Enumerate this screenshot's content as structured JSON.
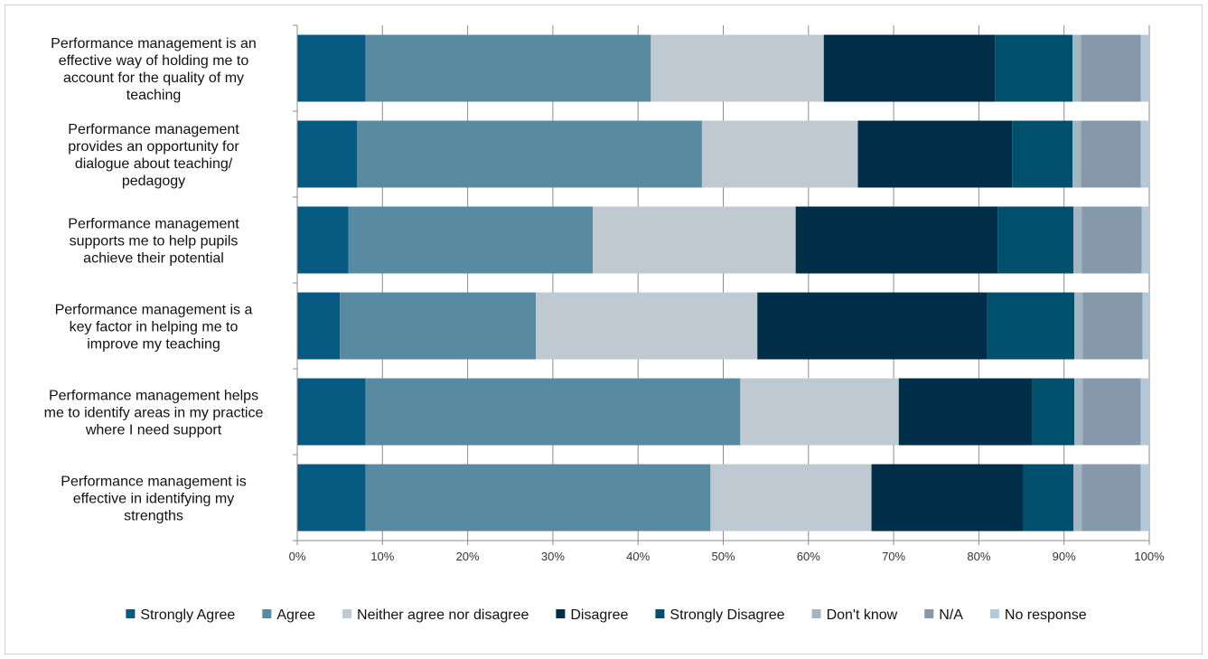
{
  "chart_data": {
    "type": "bar",
    "orientation": "horizontal",
    "stacked": "percent",
    "categories": [
      "Performance management is an effective way of holding me to account for the quality of my teaching",
      "Performance management provides an opportunity for dialogue about teaching/ pedagogy",
      "Performance management supports me to help pupils achieve their potential",
      "Performance management is a key factor in helping me to improve my teaching",
      "Performance management helps me to identify areas in my practice where I need support",
      "Performance management is effective in identifying my strengths"
    ],
    "category_lines": [
      [
        "Performance management is an",
        "effective way of holding me to",
        "account for the quality of my",
        "teaching"
      ],
      [
        "Performance management",
        "provides an opportunity for",
        "dialogue about teaching/",
        "pedagogy"
      ],
      [
        "Performance management",
        "supports me to help pupils",
        "achieve their potential"
      ],
      [
        "Performance management is a",
        "key factor in helping me to",
        "improve my teaching"
      ],
      [
        "Performance management helps",
        "me to identify areas in my practice",
        "where I need support"
      ],
      [
        "Performance management is",
        "effective in identifying my",
        "strengths"
      ]
    ],
    "series": [
      {
        "name": "Strongly Agree",
        "color": "#065a82",
        "values": [
          8,
          7,
          6,
          5,
          8,
          8
        ]
      },
      {
        "name": "Agree",
        "color": "#588aa2",
        "values": [
          33.5,
          40.5,
          28.7,
          23,
          44,
          40.5
        ]
      },
      {
        "name": "Neither agree nor disagree",
        "color": "#bfc9d2",
        "values": [
          20.3,
          18.3,
          23.8,
          26,
          18.6,
          18.9
        ]
      },
      {
        "name": "Disagree",
        "color": "#002d47",
        "values": [
          20.1,
          18.1,
          23.7,
          27,
          15.7,
          17.8
        ]
      },
      {
        "name": "Strongly Disagree",
        "color": "#004f6c",
        "values": [
          9.1,
          7.1,
          8.9,
          10.2,
          4.9,
          5.9
        ]
      },
      {
        "name": "Don't know",
        "color": "#a3b4c2",
        "values": [
          1,
          1,
          1,
          1,
          1,
          1
        ]
      },
      {
        "name": "N/A",
        "color": "#8599aa",
        "values": [
          7,
          7,
          7,
          7,
          6.8,
          6.9
        ]
      },
      {
        "name": "No response",
        "color": "#b3c9da",
        "values": [
          1,
          1,
          0.9,
          0.8,
          1,
          1
        ]
      }
    ],
    "x_ticks": [
      "0%",
      "10%",
      "20%",
      "30%",
      "40%",
      "50%",
      "60%",
      "70%",
      "80%",
      "90%",
      "100%"
    ],
    "xlim": [
      0,
      100
    ],
    "grid": true,
    "legend_position": "bottom"
  }
}
